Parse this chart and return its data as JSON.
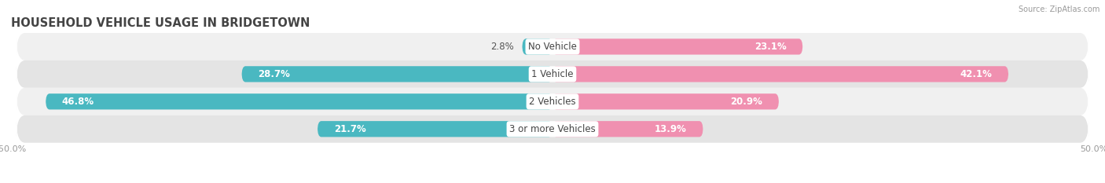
{
  "title": "HOUSEHOLD VEHICLE USAGE IN BRIDGETOWN",
  "source": "Source: ZipAtlas.com",
  "categories": [
    "No Vehicle",
    "1 Vehicle",
    "2 Vehicles",
    "3 or more Vehicles"
  ],
  "owner_values": [
    2.8,
    28.7,
    46.8,
    21.7
  ],
  "renter_values": [
    23.1,
    42.1,
    20.9,
    13.9
  ],
  "owner_color": "#4ab8c1",
  "renter_color": "#f090b0",
  "row_bg_color_light": "#f0f0f0",
  "row_bg_color_dark": "#e4e4e4",
  "xlim": [
    -50,
    50
  ],
  "bar_height": 0.58,
  "title_fontsize": 10.5,
  "label_fontsize": 8.5,
  "axis_label_fontsize": 8,
  "figsize": [
    14.06,
    2.33
  ],
  "dpi": 100
}
